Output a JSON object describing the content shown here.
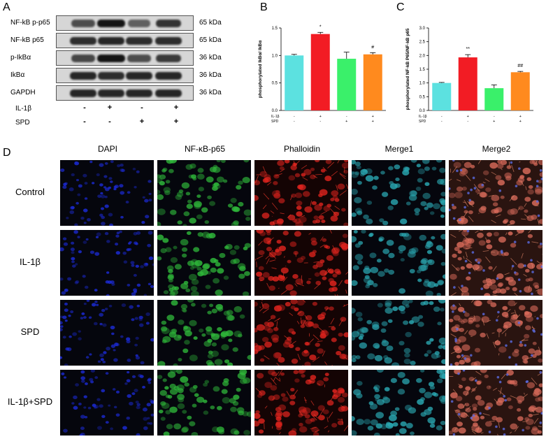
{
  "panels": {
    "a": "A",
    "b": "B",
    "c": "C",
    "d": "D"
  },
  "western_blot": {
    "bands": [
      {
        "label": "NF-kB p-p65",
        "kda": "65 kDa",
        "intensity": [
          0.55,
          1.0,
          0.4,
          0.75
        ]
      },
      {
        "label": "NF-kB p65",
        "kda": "65 kDa",
        "intensity": [
          0.8,
          0.85,
          0.8,
          0.8
        ]
      },
      {
        "label": "p-IkBα",
        "kda": "36 kDa",
        "intensity": [
          0.6,
          1.0,
          0.55,
          0.7
        ]
      },
      {
        "label": "IkBα",
        "kda": "36 kDa",
        "intensity": [
          0.85,
          0.8,
          0.85,
          0.85
        ]
      },
      {
        "label": "GAPDH",
        "kda": "36 kDa",
        "intensity": [
          0.85,
          0.85,
          0.85,
          0.85
        ]
      }
    ],
    "treatments": [
      {
        "label": "IL-1β",
        "signs": [
          "-",
          "+",
          "-",
          "+"
        ]
      },
      {
        "label": "SPD",
        "signs": [
          "-",
          "-",
          "+",
          "+"
        ]
      }
    ]
  },
  "chart_data": [
    {
      "type": "bar",
      "ylabel": "phosphorylated IkBα/ IkBα",
      "ylim": [
        0,
        1.5
      ],
      "yticks": [
        "0.0",
        "0.5",
        "1.0",
        "1.5"
      ],
      "values": [
        1.0,
        1.39,
        0.94,
        1.02
      ],
      "errors": [
        0.02,
        0.03,
        0.12,
        0.03
      ],
      "colors": [
        "#5ce1e0",
        "#f21c24",
        "#3af06a",
        "#ff8a1e"
      ],
      "annotations": [
        "",
        "*",
        "",
        "#"
      ],
      "treatments": [
        {
          "label": "IL-1β",
          "signs": [
            "-",
            "+",
            "-",
            "+"
          ]
        },
        {
          "label": "SPD",
          "signs": [
            "-",
            "-",
            "+",
            "+"
          ]
        }
      ]
    },
    {
      "type": "bar",
      "ylabel": "phosphorylated NF-kB P65/NF-kB p65",
      "ylim": [
        0,
        3.0
      ],
      "yticks": [
        "0.0",
        "0.5",
        "1.0",
        "1.5",
        "2.0",
        "2.5",
        "3.0"
      ],
      "values": [
        1.0,
        1.93,
        0.81,
        1.39
      ],
      "errors": [
        0.02,
        0.1,
        0.12,
        0.03
      ],
      "colors": [
        "#5ce1e0",
        "#f21c24",
        "#3af06a",
        "#ff8a1e"
      ],
      "annotations": [
        "",
        "**",
        "",
        "##"
      ],
      "treatments": [
        {
          "label": "IL-1β",
          "signs": [
            "-",
            "+",
            "-",
            "+"
          ]
        },
        {
          "label": "SPD",
          "signs": [
            "-",
            "-",
            "+",
            "+"
          ]
        }
      ]
    }
  ],
  "immunofluorescence": {
    "columns": [
      "DAPI",
      "NF-κB-p65",
      "Phalloidin",
      "Merge1",
      "Merge2"
    ],
    "rows": [
      "Control",
      "IL-1β",
      "SPD",
      "IL-1β+SPD"
    ],
    "channel_colors": [
      "#1c2bd8",
      "#2fb83a",
      "#e0241e",
      "#2aa6b0",
      "#d86a5a"
    ]
  }
}
